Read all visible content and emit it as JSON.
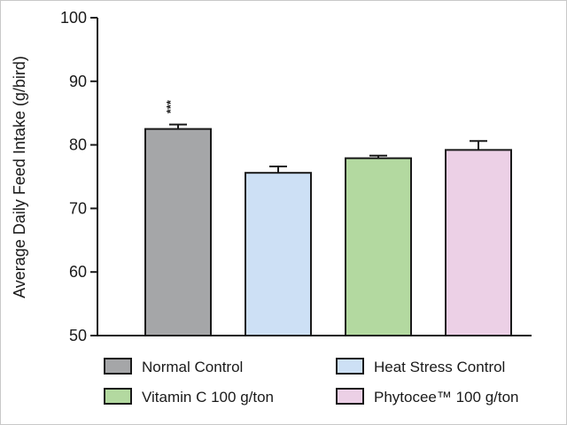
{
  "chart_data": {
    "type": "bar",
    "title": "",
    "xlabel": "",
    "ylabel": "Average Daily Feed Intake (g/bird)",
    "ylim": [
      50,
      100
    ],
    "yticks": [
      "50",
      "60",
      "70",
      "80",
      "90",
      "100"
    ],
    "grid": false,
    "legend_position": "bottom",
    "categories": [
      "Normal Control",
      "Heat Stress Control",
      "Vitamin C 100 g/ton",
      "Phytocee™ 100 g/ton"
    ],
    "values": [
      82.5,
      75.6,
      77.9,
      79.2
    ],
    "errors": [
      0.7,
      1.0,
      0.4,
      1.4
    ],
    "colors": [
      "#a5a6a8",
      "#cde0f5",
      "#b3d9a0",
      "#ecd0e6"
    ],
    "annotations": [
      "***",
      "",
      "",
      ""
    ]
  }
}
